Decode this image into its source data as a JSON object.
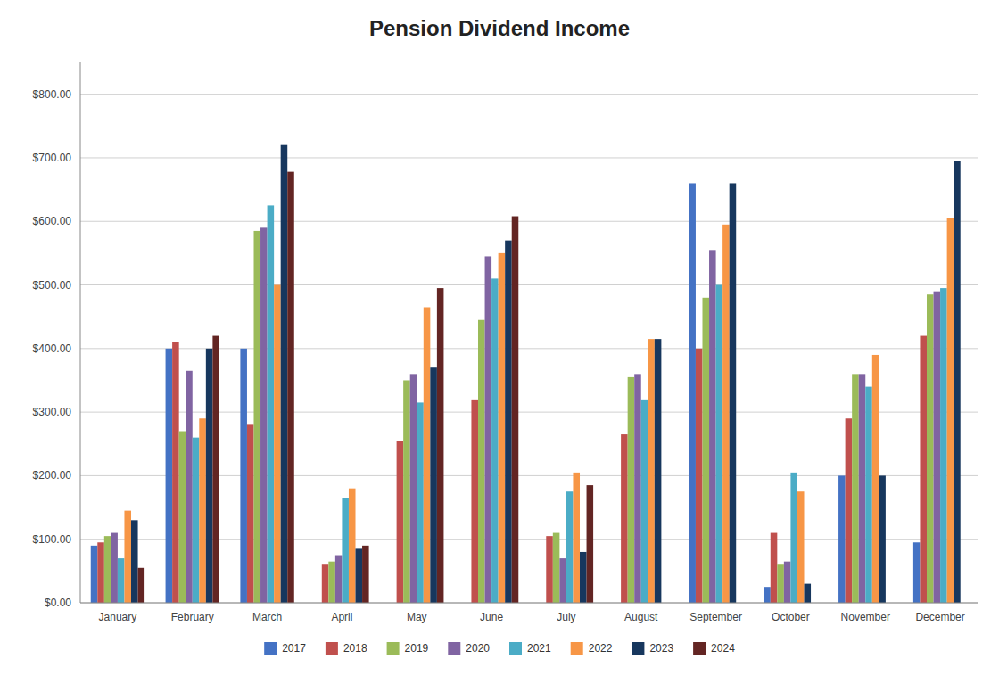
{
  "chart_data": {
    "type": "bar",
    "title": "Pension Dividend Income",
    "categories": [
      "January",
      "February",
      "March",
      "April",
      "May",
      "June",
      "July",
      "August",
      "September",
      "October",
      "November",
      "December"
    ],
    "series": [
      {
        "name": "2017",
        "color": "#4472C4",
        "values": [
          90,
          400,
          400,
          0,
          0,
          0,
          0,
          0,
          660,
          25,
          200,
          95
        ]
      },
      {
        "name": "2018",
        "color": "#C0504D",
        "values": [
          95,
          410,
          280,
          60,
          255,
          320,
          105,
          265,
          400,
          110,
          290,
          420
        ]
      },
      {
        "name": "2019",
        "color": "#9BBB59",
        "values": [
          105,
          270,
          585,
          65,
          350,
          445,
          110,
          355,
          480,
          60,
          360,
          485
        ]
      },
      {
        "name": "2020",
        "color": "#8064A2",
        "values": [
          110,
          365,
          590,
          75,
          360,
          545,
          70,
          360,
          555,
          65,
          360,
          490
        ]
      },
      {
        "name": "2021",
        "color": "#4BACC6",
        "values": [
          70,
          260,
          625,
          165,
          315,
          510,
          175,
          320,
          500,
          205,
          340,
          495
        ]
      },
      {
        "name": "2022",
        "color": "#F79646",
        "values": [
          145,
          290,
          500,
          180,
          465,
          550,
          205,
          415,
          595,
          175,
          390,
          605
        ]
      },
      {
        "name": "2023",
        "color": "#17375E",
        "values": [
          130,
          400,
          720,
          85,
          370,
          570,
          80,
          415,
          660,
          30,
          200,
          695
        ]
      },
      {
        "name": "2024",
        "color": "#632523",
        "values": [
          55,
          420,
          678,
          90,
          495,
          608,
          185,
          0,
          0,
          0,
          0,
          0
        ]
      }
    ],
    "ylim": [
      0,
      850
    ],
    "yticks": [
      {
        "value": 0,
        "label": "$0.00"
      },
      {
        "value": 100,
        "label": "$100.00"
      },
      {
        "value": 200,
        "label": "$200.00"
      },
      {
        "value": 300,
        "label": "$300.00"
      },
      {
        "value": 400,
        "label": "$400.00"
      },
      {
        "value": 500,
        "label": "$500.00"
      },
      {
        "value": 600,
        "label": "$600.00"
      },
      {
        "value": 700,
        "label": "$700.00"
      },
      {
        "value": 800,
        "label": "$800.00"
      }
    ],
    "grid": true,
    "legend": "bottom"
  }
}
